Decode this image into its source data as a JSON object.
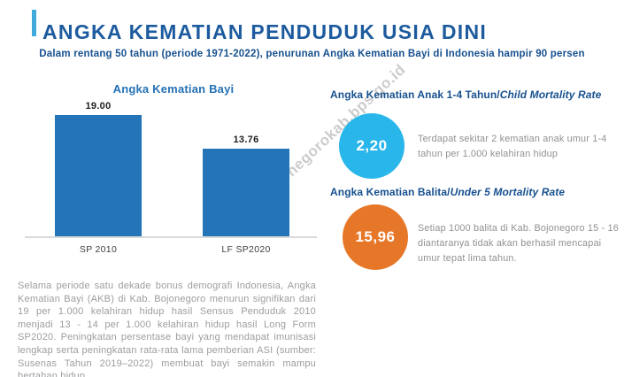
{
  "page": {
    "title": "ANGKA KEMATIAN PENDUDUK USIA DINI",
    "subtitle": "Dalam rentang 50 tahun (periode 1971-2022), penurunan Angka Kematian Bayi di Indonesia hampir 90 persen"
  },
  "chart_data": {
    "type": "bar",
    "title": "Angka Kematian Bayi",
    "categories": [
      "SP 2010",
      "LF SP2020"
    ],
    "values": [
      19.0,
      13.76
    ],
    "value_labels": [
      "19.00",
      "13.76"
    ],
    "xlabel": "",
    "ylabel": "",
    "ylim": [
      0,
      19
    ],
    "grid": false,
    "legend": "none",
    "bar_color": "#2474b8"
  },
  "stats": {
    "child": {
      "heading_main": "Angka Kematian Anak 1-4 Tahun/",
      "heading_italic": "Child Mortality Rate",
      "value": "2,20",
      "description": "Terdapat sekitar 2 kematian anak umur 1-4 tahun per 1.000 kelahiran hidup",
      "circle_color": "#29b6ea"
    },
    "under5": {
      "heading_main": "Angka Kematian Balita/",
      "heading_italic": "Under 5 Mortality Rate",
      "value": "15,96",
      "description": "Setiap 1000 balita di Kab. Bojonegoro 15 - 16 diantaranya tidak akan berhasil mencapai umur tepat lima tahun.",
      "circle_color": "#e77728"
    }
  },
  "footer": {
    "paragraph": "Selama periode satu dekade bonus demografi Indonesia, Angka Kematian Bayi (AKB) di Kab. Bojonegoro menurun signifikan dari 19 per 1.000 kelahiran hidup hasil Sensus Penduduk 2010 menjadi 13 - 14 per 1.000 kelahiran hidup hasil Long Form SP2020. Peningkatan persentase bayi yang mendapat imunisasi lengkap serta peningkatan rata-rata lama pemberian ASI (sumber: Susenas Tahun 2019–2022) membuat bayi semakin mampu bertahan hidup."
  },
  "watermark": {
    "text": "https://bojonegorokab.bps.go.id"
  },
  "colors": {
    "title_blue": "#1d5b9e",
    "accent_light_blue": "#41aadd",
    "heading_navy": "#17518f",
    "chart_title_blue": "#2571b5",
    "bar_blue": "#2474b8",
    "cyan_circle": "#29b6ea",
    "orange_circle": "#e77728",
    "body_gray": "#9b9da0"
  }
}
